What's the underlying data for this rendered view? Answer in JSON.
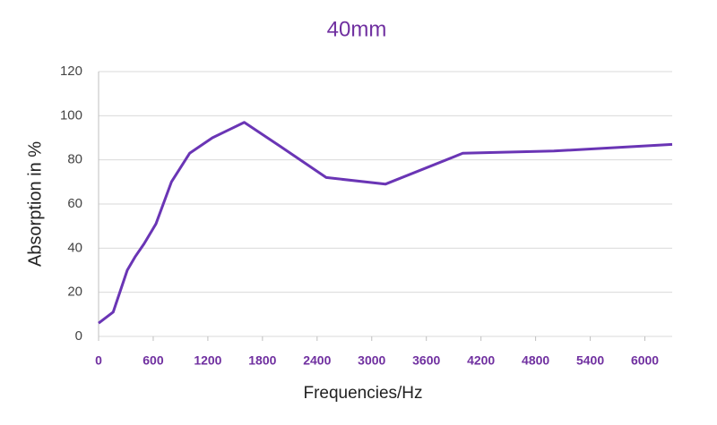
{
  "chart_data": {
    "type": "line",
    "title": "40mm",
    "x_label": "Frequencies/Hz",
    "y_label": "Absorption in %",
    "series": [
      {
        "name": "40mm",
        "color": "#6a35b5",
        "x": [
          0,
          160,
          315,
          400,
          500,
          630,
          800,
          1000,
          1250,
          1600,
          2000,
          2500,
          3150,
          4000,
          5000,
          6300
        ],
        "values": [
          6,
          11,
          30,
          36,
          42,
          51,
          70,
          83,
          90,
          97,
          86,
          72,
          69,
          83,
          84,
          87
        ]
      }
    ],
    "xlim": [
      0,
      6300
    ],
    "xticks": [
      0,
      600,
      1200,
      1800,
      2400,
      3000,
      3600,
      4200,
      4800,
      5400,
      6000
    ],
    "ylim": [
      0,
      120
    ],
    "yticks": [
      0,
      20,
      40,
      60,
      80,
      100,
      120
    ],
    "grid": true
  }
}
